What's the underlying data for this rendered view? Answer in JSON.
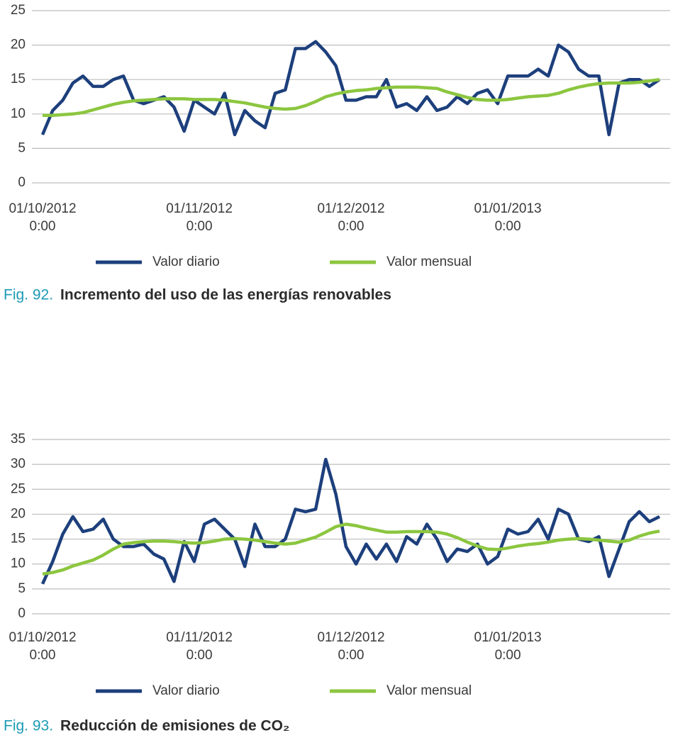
{
  "chart_data": [
    {
      "type": "line",
      "figure_label": "Fig. 92.",
      "title": "Incremento del uso de las energías renovables",
      "x": [
        "01/10/2012",
        "03/10/2012",
        "05/10/2012",
        "07/10/2012",
        "09/10/2012",
        "11/10/2012",
        "13/10/2012",
        "15/10/2012",
        "17/10/2012",
        "19/10/2012",
        "21/10/2012",
        "23/10/2012",
        "25/10/2012",
        "27/10/2012",
        "29/10/2012",
        "31/10/2012",
        "02/11/2012",
        "04/11/2012",
        "06/11/2012",
        "08/11/2012",
        "10/11/2012",
        "12/11/2012",
        "14/11/2012",
        "16/11/2012",
        "18/11/2012",
        "20/11/2012",
        "22/11/2012",
        "24/11/2012",
        "26/11/2012",
        "28/11/2012",
        "30/11/2012",
        "02/12/2012",
        "04/12/2012",
        "06/12/2012",
        "08/12/2012",
        "10/12/2012",
        "12/12/2012",
        "14/12/2012",
        "16/12/2012",
        "18/12/2012",
        "20/12/2012",
        "22/12/2012",
        "24/12/2012",
        "26/12/2012",
        "28/12/2012",
        "30/12/2012",
        "01/01/2013",
        "03/01/2013",
        "05/01/2013",
        "07/01/2013",
        "09/01/2013",
        "11/01/2013",
        "13/01/2013",
        "15/01/2013",
        "17/01/2013",
        "19/01/2013",
        "21/01/2013",
        "23/01/2013",
        "25/01/2013",
        "27/01/2013",
        "29/01/2013",
        "31/01/2013"
      ],
      "series": [
        {
          "name": "Valor diario",
          "color": "#1d3f7c",
          "values": [
            7,
            10.5,
            12,
            14.5,
            15.5,
            14,
            14,
            15,
            15.5,
            12,
            11.5,
            12,
            12.5,
            11,
            7.5,
            12,
            11,
            10,
            13,
            7,
            10.5,
            9,
            8,
            13,
            13.5,
            19.5,
            19.5,
            20.5,
            19,
            17,
            12,
            12,
            12.5,
            12.5,
            15,
            11,
            11.5,
            10.5,
            12.5,
            10.5,
            11,
            12.5,
            11.5,
            13,
            13.5,
            11.5,
            15.5,
            15.5,
            15.5,
            16.5,
            15.5,
            20,
            19,
            16.5,
            15.5,
            15.5,
            7,
            14.5,
            15,
            15,
            14,
            15
          ]
        },
        {
          "name": "Valor mensual",
          "color": "#8cc63f",
          "values": [
            9.8,
            9.8,
            9.9,
            10,
            10.2,
            10.6,
            11,
            11.4,
            11.7,
            11.9,
            12,
            12.1,
            12.2,
            12.2,
            12.2,
            12.1,
            12.1,
            12.1,
            12,
            11.8,
            11.6,
            11.3,
            11,
            10.8,
            10.7,
            10.8,
            11.2,
            11.8,
            12.5,
            12.9,
            13.2,
            13.4,
            13.5,
            13.7,
            13.8,
            13.9,
            13.9,
            13.9,
            13.8,
            13.7,
            13.2,
            12.8,
            12.4,
            12.1,
            12,
            12,
            12.1,
            12.3,
            12.5,
            12.6,
            12.7,
            13,
            13.5,
            13.9,
            14.2,
            14.4,
            14.5,
            14.5,
            14.5,
            14.6,
            14.8,
            15
          ]
        }
      ],
      "xlim": [
        "01/10/2012",
        "31/01/2013"
      ],
      "xticks": [
        {
          "value": "01/10/2012",
          "label": "01/10/2012 0:00"
        },
        {
          "value": "01/11/2012",
          "label": "01/11/2012 0:00"
        },
        {
          "value": "01/12/2012",
          "label": "01/12/2012 0:00"
        },
        {
          "value": "01/01/2013",
          "label": "01/01/2013 0:00"
        }
      ],
      "ylim": [
        0,
        25
      ],
      "yticks": [
        0,
        5,
        10,
        15,
        20,
        25
      ],
      "grid": true,
      "legend": "bottom"
    },
    {
      "type": "line",
      "figure_label": "Fig. 93.",
      "title": "Reducción de emisiones de CO₂",
      "x": [
        "01/10/2012",
        "03/10/2012",
        "05/10/2012",
        "07/10/2012",
        "09/10/2012",
        "11/10/2012",
        "13/10/2012",
        "15/10/2012",
        "17/10/2012",
        "19/10/2012",
        "21/10/2012",
        "23/10/2012",
        "25/10/2012",
        "27/10/2012",
        "29/10/2012",
        "31/10/2012",
        "02/11/2012",
        "04/11/2012",
        "06/11/2012",
        "08/11/2012",
        "10/11/2012",
        "12/11/2012",
        "14/11/2012",
        "16/11/2012",
        "18/11/2012",
        "20/11/2012",
        "22/11/2012",
        "24/11/2012",
        "26/11/2012",
        "28/11/2012",
        "30/11/2012",
        "02/12/2012",
        "04/12/2012",
        "06/12/2012",
        "08/12/2012",
        "10/12/2012",
        "12/12/2012",
        "14/12/2012",
        "16/12/2012",
        "18/12/2012",
        "20/12/2012",
        "22/12/2012",
        "24/12/2012",
        "26/12/2012",
        "28/12/2012",
        "30/12/2012",
        "01/01/2013",
        "03/01/2013",
        "05/01/2013",
        "07/01/2013",
        "09/01/2013",
        "11/01/2013",
        "13/01/2013",
        "15/01/2013",
        "17/01/2013",
        "19/01/2013",
        "21/01/2013",
        "23/01/2013",
        "25/01/2013",
        "27/01/2013",
        "29/01/2013",
        "31/01/2013"
      ],
      "series": [
        {
          "name": "Valor diario",
          "color": "#1d3f7c",
          "values": [
            6,
            10.5,
            16,
            19.5,
            16.5,
            17,
            19,
            15,
            13.5,
            13.5,
            14,
            12,
            11,
            6.5,
            14.5,
            10.5,
            18,
            19,
            17,
            15,
            9.5,
            18,
            13.5,
            13.5,
            15,
            21,
            20.5,
            21,
            31,
            24,
            13.5,
            10,
            14,
            11,
            14,
            10.5,
            15.5,
            14,
            18,
            15,
            10.5,
            13,
            12.5,
            14,
            10,
            11.5,
            17,
            16,
            16.5,
            19,
            15,
            21,
            20,
            15,
            14.5,
            15.5,
            7.5,
            13,
            18.5,
            20.5,
            18.5,
            19.5
          ]
        },
        {
          "name": "Valor mensual",
          "color": "#8cc63f",
          "values": [
            8,
            8.3,
            8.8,
            9.6,
            10.2,
            10.8,
            11.8,
            13,
            14,
            14.3,
            14.5,
            14.6,
            14.6,
            14.5,
            14.3,
            14.2,
            14.3,
            14.6,
            15,
            15.1,
            15,
            14.8,
            14.5,
            14.2,
            14,
            14.2,
            14.8,
            15.4,
            16.4,
            17.5,
            18,
            17.7,
            17.2,
            16.8,
            16.4,
            16.4,
            16.5,
            16.5,
            16.5,
            16.4,
            16,
            15.3,
            14.4,
            13.6,
            13,
            12.9,
            13.2,
            13.6,
            13.9,
            14.1,
            14.4,
            14.8,
            15,
            15.1,
            15,
            14.8,
            14.6,
            14.4,
            14.8,
            15.6,
            16.2,
            16.6
          ]
        }
      ],
      "xlim": [
        "01/10/2012",
        "31/01/2013"
      ],
      "xticks": [
        {
          "value": "01/10/2012",
          "label": "01/10/2012 0:00"
        },
        {
          "value": "01/11/2012",
          "label": "01/11/2012 0:00"
        },
        {
          "value": "01/12/2012",
          "label": "01/12/2012 0:00"
        },
        {
          "value": "01/01/2013",
          "label": "01/01/2013 0:00"
        }
      ],
      "ylim": [
        0,
        35
      ],
      "yticks": [
        0,
        5,
        10,
        15,
        20,
        25,
        30,
        35
      ],
      "grid": true,
      "legend": "bottom"
    }
  ]
}
